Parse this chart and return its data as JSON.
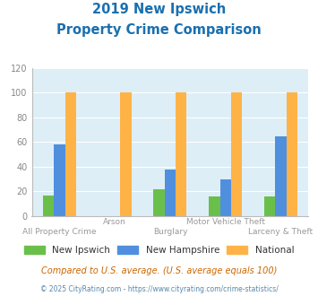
{
  "title_line1": "2019 New Ipswich",
  "title_line2": "Property Crime Comparison",
  "title_color": "#1a6faf",
  "categories": [
    "All Property Crime",
    "Arson",
    "Burglary",
    "Motor Vehicle Theft",
    "Larceny & Theft"
  ],
  "cat_labels_upper": [
    "",
    "Arson",
    "",
    "Motor Vehicle Theft",
    ""
  ],
  "cat_labels_lower": [
    "All Property Crime",
    "",
    "Burglary",
    "",
    "Larceny & Theft"
  ],
  "series": {
    "New Ipswich": [
      17,
      0,
      22,
      16,
      16
    ],
    "New Hampshire": [
      58,
      0,
      38,
      30,
      65
    ],
    "National": [
      100,
      100,
      100,
      100,
      100
    ]
  },
  "colors": {
    "New Ipswich": "#6abf4b",
    "New Hampshire": "#4f8fde",
    "National": "#ffb347"
  },
  "ylim": [
    0,
    120
  ],
  "yticks": [
    0,
    20,
    40,
    60,
    80,
    100,
    120
  ],
  "plot_bg_color": "#ddeef6",
  "fig_bg_color": "#ffffff",
  "xtick_color": "#999999",
  "ytick_color": "#888888",
  "grid_color": "#ffffff",
  "footer1": "Compared to U.S. average. (U.S. average equals 100)",
  "footer2": "© 2025 CityRating.com - https://www.cityrating.com/crime-statistics/",
  "footer1_color": "#cc6600",
  "footer2_color": "#5588aa",
  "bar_width": 0.2
}
